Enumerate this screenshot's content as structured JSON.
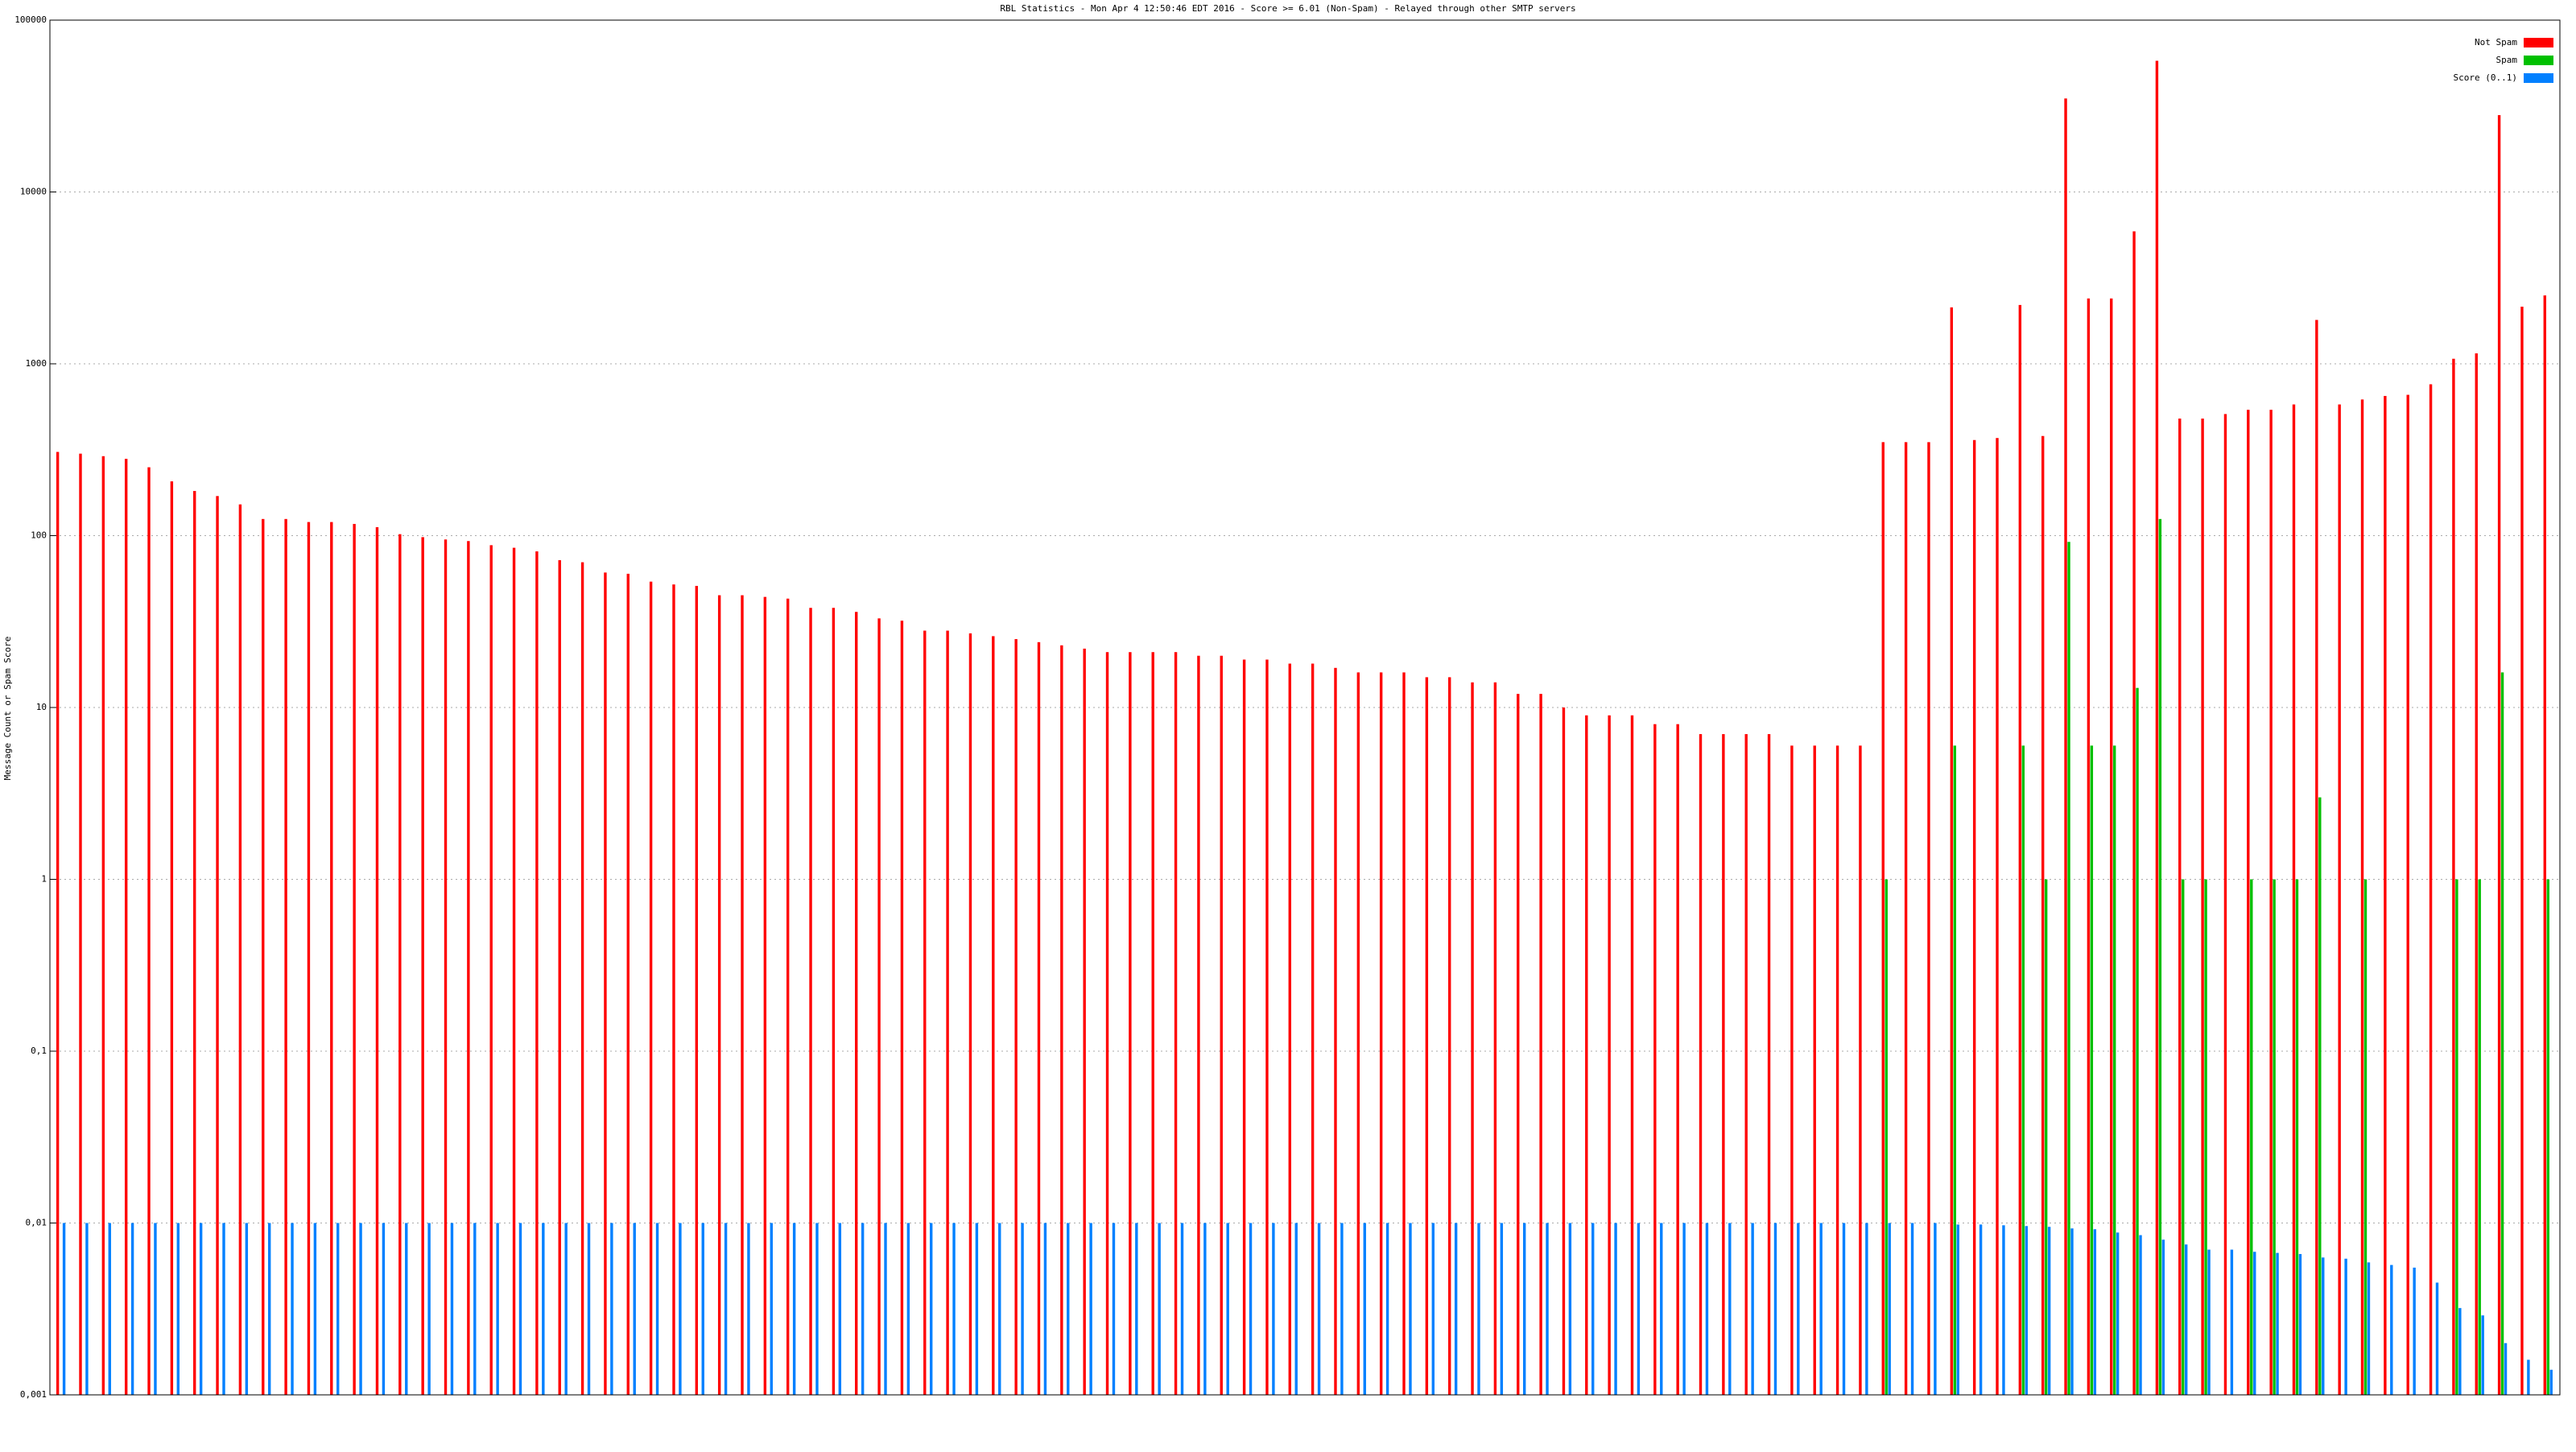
{
  "chart_data": {
    "type": "bar",
    "title": "RBL Statistics - Mon Apr  4 12:50:46 EDT 2016 - Score >= 6.01 (Non-Spam) - Relayed through other SMTP servers",
    "y_label": "Message Count or Spam Score",
    "log_scale": true,
    "grid": true,
    "legend": "top-right",
    "ylim": [
      0.001,
      100000
    ],
    "yticks": [
      {
        "value": 0.001,
        "label": "0,001"
      },
      {
        "value": 0.01,
        "label": "0,01"
      },
      {
        "value": 0.1,
        "label": "0,1"
      },
      1,
      10,
      100,
      1000,
      10000,
      100000
    ],
    "categories": [
      null,
      null,
      null,
      null,
      null,
      null,
      null,
      null,
      null,
      null,
      null,
      null,
      null,
      null,
      null,
      null,
      null,
      null,
      null,
      null,
      null,
      null,
      null,
      null,
      null,
      null,
      null,
      null,
      null,
      null,
      null,
      null,
      null,
      null,
      null,
      null,
      null,
      null,
      null,
      null,
      null,
      null,
      null,
      null,
      null,
      null,
      null,
      null,
      null,
      null,
      null,
      null,
      null,
      null,
      null,
      null,
      null,
      null,
      null,
      null,
      null,
      null,
      null,
      null,
      null,
      null,
      null,
      null,
      null,
      null,
      null,
      null,
      null,
      null,
      null,
      null,
      null,
      null,
      null,
      null,
      null,
      null,
      null,
      null,
      null,
      null,
      null,
      null,
      null,
      null,
      null,
      null,
      null,
      null,
      null,
      null,
      null,
      null,
      null,
      null,
      null,
      null,
      null,
      null,
      null,
      null,
      null,
      null,
      null,
      null
    ],
    "series": [
      {
        "name": "Not Spam",
        "color": "#ff0000",
        "values": [
          307,
          300,
          290,
          280,
          250,
          207,
          182,
          170,
          152,
          125,
          125,
          120,
          120,
          117,
          112,
          102,
          98,
          95,
          93,
          88,
          85,
          81,
          72,
          70,
          61,
          60,
          54,
          52,
          51,
          45,
          45,
          44,
          43,
          38,
          38,
          36,
          33,
          32,
          28,
          28,
          27,
          26,
          25,
          24,
          23,
          22,
          21,
          21,
          21,
          21,
          20,
          20,
          19,
          19,
          18,
          18,
          17,
          16,
          16,
          16,
          15,
          15,
          14,
          14,
          12,
          12,
          10,
          9,
          9,
          9,
          8,
          8,
          7,
          7,
          7,
          7,
          6,
          6,
          6,
          6,
          350,
          350,
          350,
          2130,
          360,
          370,
          2200,
          380,
          35000,
          2400,
          2400,
          5900,
          58000,
          480,
          480,
          510,
          540,
          540,
          580,
          1800,
          580,
          620,
          650,
          660,
          760,
          1070,
          1150,
          28000,
          2150,
          2500
        ]
      },
      {
        "name": "Spam",
        "color": "#00c000",
        "values": [
          null,
          null,
          null,
          null,
          null,
          null,
          null,
          null,
          null,
          null,
          null,
          null,
          null,
          null,
          null,
          null,
          null,
          null,
          null,
          null,
          null,
          null,
          null,
          null,
          null,
          null,
          null,
          null,
          null,
          null,
          null,
          null,
          null,
          null,
          null,
          null,
          null,
          null,
          null,
          null,
          null,
          null,
          null,
          null,
          null,
          null,
          null,
          null,
          null,
          null,
          null,
          null,
          null,
          null,
          null,
          null,
          null,
          null,
          null,
          null,
          null,
          null,
          null,
          null,
          null,
          null,
          null,
          null,
          null,
          null,
          null,
          null,
          null,
          null,
          null,
          null,
          null,
          null,
          null,
          null,
          1,
          null,
          null,
          6,
          null,
          null,
          6,
          1,
          92,
          6,
          6,
          13,
          125,
          1,
          1,
          null,
          1,
          1,
          1,
          3,
          null,
          1,
          null,
          null,
          null,
          1,
          1,
          16,
          null,
          1
        ]
      },
      {
        "name": "Score (0..1)",
        "color": "#0080ff",
        "values": [
          0.01,
          0.01,
          0.01,
          0.01,
          0.01,
          0.01,
          0.01,
          0.01,
          0.01,
          0.01,
          0.01,
          0.01,
          0.01,
          0.01,
          0.01,
          0.01,
          0.01,
          0.01,
          0.01,
          0.01,
          0.01,
          0.01,
          0.01,
          0.01,
          0.01,
          0.01,
          0.01,
          0.01,
          0.01,
          0.01,
          0.01,
          0.01,
          0.01,
          0.01,
          0.01,
          0.01,
          0.01,
          0.01,
          0.01,
          0.01,
          0.01,
          0.01,
          0.01,
          0.01,
          0.01,
          0.01,
          0.01,
          0.01,
          0.01,
          0.01,
          0.01,
          0.01,
          0.01,
          0.01,
          0.01,
          0.01,
          0.01,
          0.01,
          0.01,
          0.01,
          0.01,
          0.01,
          0.01,
          0.01,
          0.01,
          0.01,
          0.01,
          0.01,
          0.01,
          0.01,
          0.01,
          0.01,
          0.01,
          0.01,
          0.01,
          0.01,
          0.01,
          0.01,
          0.01,
          0.01,
          0.01,
          0.01,
          0.01,
          0.0098,
          0.0098,
          0.0097,
          0.0096,
          0.0095,
          0.0093,
          0.0092,
          0.0088,
          0.0085,
          0.008,
          0.0075,
          0.007,
          0.007,
          0.0068,
          0.0067,
          0.0066,
          0.0063,
          0.0062,
          0.0059,
          0.0057,
          0.0055,
          0.0045,
          0.0032,
          0.0029,
          0.002,
          0.0016,
          0.0014
        ]
      }
    ]
  }
}
